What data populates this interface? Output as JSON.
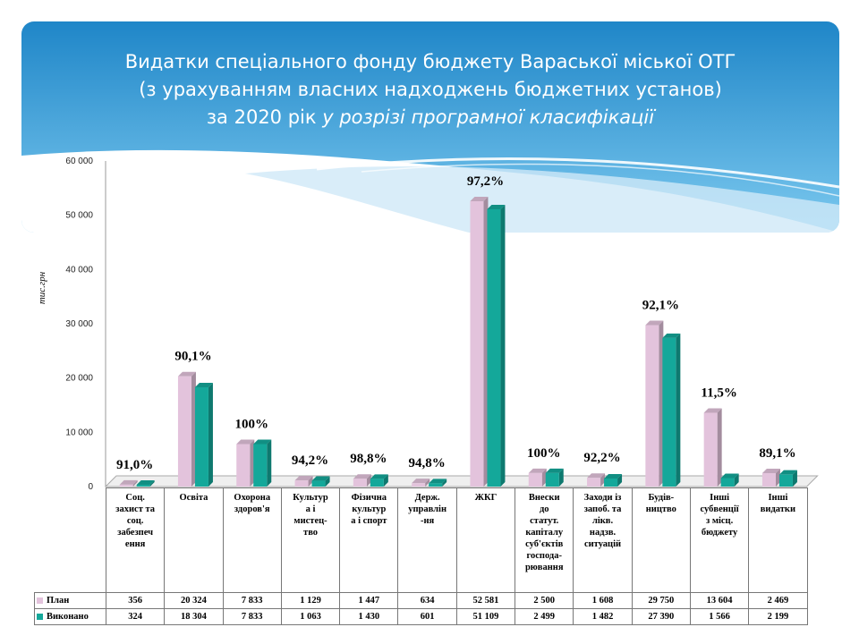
{
  "title": {
    "line1": "Видатки спеціального фонду бюджету Вараської міської ОТГ",
    "line2": "(з урахуванням власних надходжень бюджетних установ)",
    "line3_a": "за 2020 рік ",
    "line3_b": "у розрізі програмної класифікації"
  },
  "colors": {
    "banner_top": "#1f86c8",
    "banner_bottom": "#7cc9ef",
    "plan": "#e3c3dc",
    "done": "#14a89a"
  },
  "chart_data": {
    "type": "bar",
    "ylabel": "тис.грн",
    "ylim": [
      0,
      60000
    ],
    "yticks": [
      0,
      10000,
      20000,
      30000,
      40000,
      50000,
      60000
    ],
    "ytick_labels": [
      "0",
      "10 000",
      "20 000",
      "30 000",
      "40 000",
      "50 000",
      "60 000"
    ],
    "categories": [
      "Соц. захист та соц. забезпечення",
      "Освіта",
      "Охорона здоров'я",
      "Культура і мистецтво",
      "Фізична культура і спорт",
      "Держ. управління",
      "ЖКГ",
      "Внески до статут. капіталу суб'єктів господарювання",
      "Заходи із запоб. та лікв. надзв. ситуацій",
      "Будівництво",
      "Інші субвенції з місц. бюджету",
      "Інші видатки"
    ],
    "category_lines": [
      [
        "Соц.",
        "захист та",
        "соц.",
        "забезпеч",
        "ення"
      ],
      [
        "Освіта"
      ],
      [
        "Охорона",
        "здоров'я"
      ],
      [
        "Культур",
        "а і",
        "мистец-",
        "тво"
      ],
      [
        "Фізична",
        "культур",
        "а і спорт"
      ],
      [
        "Держ.",
        "управлін",
        "-ня"
      ],
      [
        "ЖКГ"
      ],
      [
        "Внески",
        "до",
        "статут.",
        "капіталу",
        "суб'єктів",
        "господа-",
        "рювання"
      ],
      [
        "Заходи із",
        "запоб. та",
        "лікв.",
        "надзв.",
        "ситуацій"
      ],
      [
        "Будів-",
        "ництво"
      ],
      [
        "Інші",
        "субвенції",
        "з місц.",
        "бюджету"
      ],
      [
        "Інші",
        "видатки"
      ]
    ],
    "series": [
      {
        "name": "План",
        "values": [
          356,
          20324,
          7833,
          1129,
          1447,
          634,
          52581,
          2500,
          1608,
          29750,
          13604,
          2469
        ],
        "labels": [
          "356",
          "20 324",
          "7 833",
          "1 129",
          "1 447",
          "634",
          "52 581",
          "2 500",
          "1 608",
          "29 750",
          "13 604",
          "2 469"
        ]
      },
      {
        "name": "Виконано",
        "values": [
          324,
          18304,
          7833,
          1063,
          1430,
          601,
          51109,
          2499,
          1482,
          27390,
          1566,
          2199
        ],
        "labels": [
          "324",
          "18 304",
          "7 833",
          "1 063",
          "1 430",
          "601",
          "51 109",
          "2 499",
          "1 482",
          "27 390",
          "1 566",
          "2 199"
        ]
      }
    ],
    "percent_labels": [
      "91,0%",
      "90,1%",
      "100%",
      "94,2%",
      "98,8%",
      "94,8%",
      "97,2%",
      "100%",
      "92,2%",
      "92,1%",
      "11,5%",
      "89,1%"
    ],
    "grid": false,
    "legend": "table-left"
  }
}
